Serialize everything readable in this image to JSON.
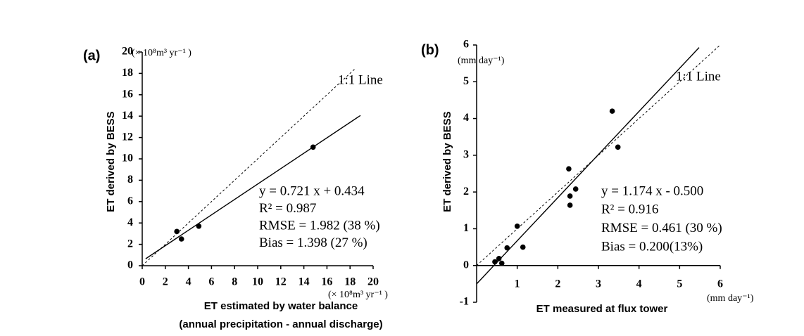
{
  "chart_data": [
    {
      "type": "scatter",
      "panel_label": "(a)",
      "ylabel": "ET derived by BESS",
      "xlabel": "ET estimated by water balance",
      "xlabel_2": "(annual precipitation - annual discharge)",
      "x_unit": "(× 10⁸m³ yr⁻¹ )",
      "y_unit": "(× 10⁸m³ yr⁻¹ )",
      "x": [
        3.0,
        3.4,
        4.9,
        14.8
      ],
      "values": [
        3.2,
        2.5,
        3.7,
        11.1
      ],
      "color": "#000000",
      "fit_line": {
        "x": [
          0.3,
          18.9
        ],
        "values": [
          0.65,
          14.06
        ]
      },
      "ref_line": {
        "name": "1:1 Line",
        "x": [
          0,
          18.5
        ],
        "values": [
          0,
          18.5
        ]
      },
      "annotations": [
        "y = 0.721 x + 0.434",
        "R² = 0.987",
        "RMSE = 1.982 (38 %)",
        "Bias = 1.398 (27 %)"
      ],
      "xlim": [
        0,
        20
      ],
      "ylim": [
        0,
        20
      ],
      "xticks": [
        0,
        2,
        4,
        6,
        8,
        10,
        12,
        14,
        16,
        18,
        20
      ],
      "yticks": [
        0,
        2,
        4,
        6,
        8,
        10,
        12,
        14,
        16,
        18,
        20
      ],
      "grid": false
    },
    {
      "type": "scatter",
      "panel_label": "(b)",
      "ylabel": "ET derived by BESS",
      "xlabel": "ET measured at flux tower",
      "x_unit": "(mm day⁻¹)",
      "y_unit": "(mm day⁻¹)",
      "x": [
        0.45,
        0.55,
        0.62,
        0.75,
        1.0,
        1.14,
        2.27,
        2.3,
        2.3,
        2.44,
        3.34,
        3.48
      ],
      "values": [
        0.1,
        0.19,
        0.06,
        0.48,
        1.07,
        0.5,
        2.63,
        1.89,
        1.64,
        2.08,
        4.2,
        3.22
      ],
      "color": "#000000",
      "fit_line": {
        "x": [
          0,
          5.48
        ],
        "values": [
          -0.5,
          5.93
        ]
      },
      "ref_line": {
        "name": "1:1 Line",
        "x": [
          0,
          6
        ],
        "values": [
          0,
          6
        ]
      },
      "annotations": [
        "y = 1.174 x - 0.500",
        "R² = 0.916",
        "RMSE = 0.461 (30 %)",
        "Bias = 0.200(13%)"
      ],
      "xlim": [
        0,
        6
      ],
      "ylim": [
        -1,
        6
      ],
      "xticks": [
        1,
        2,
        3,
        4,
        5,
        6
      ],
      "yticks": [
        -1,
        0,
        1,
        2,
        3,
        4,
        5,
        6
      ],
      "grid": false
    }
  ]
}
